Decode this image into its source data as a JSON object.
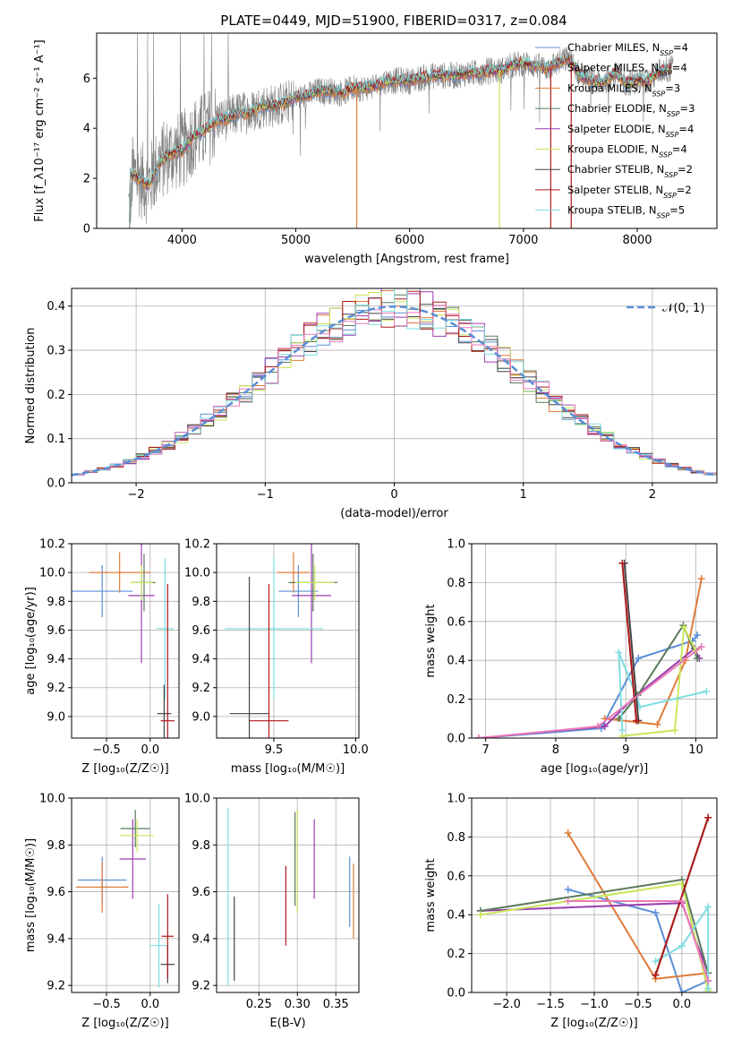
{
  "figure_title": "PLATE=0449, MJD=51900, FIBERID=0317, z=0.084",
  "colors": {
    "chabrier_miles": "#5b8ed8",
    "salpeter_miles": "#e07b39",
    "kroupa_miles": "#e07b39",
    "chabrier_elodie": "#5a7a5a",
    "salpeter_elodie": "#9b3db0",
    "kroupa_elodie": "#c8e65a",
    "chabrier_stelib": "#444444",
    "salpeter_stelib": "#b01818",
    "kroupa_stelib": "#7ddde0",
    "pink": "#e87ab8",
    "spectrum_data": "#808080",
    "normal_curve": "#5b8ed8",
    "grid": "#b0b0b0"
  },
  "chart_data": [
    {
      "id": "spectrum",
      "type": "line",
      "xlabel": "wavelength [Angstrom, rest frame]",
      "ylabel": "Flux [f_λ10⁻¹⁷ erg cm⁻² s⁻¹ A⁻¹]",
      "xlim": [
        3250,
        8700
      ],
      "ylim": [
        0,
        7.8
      ],
      "xticks": [
        4000,
        5000,
        6000,
        7000,
        8000
      ],
      "yticks": [
        0,
        2,
        4,
        6
      ],
      "legend_position": "right",
      "legend": [
        {
          "label": "Chabrier MILES, N_SSP=4",
          "color": "#5b8ed8"
        },
        {
          "label": "Salpeter MILES, N_SSP=4",
          "color": "#e07b39"
        },
        {
          "label": "Kroupa MILES, N_SSP=3",
          "color": "#e07b39"
        },
        {
          "label": "Chabrier ELODIE, N_SSP=3",
          "color": "#5a7a5a"
        },
        {
          "label": "Salpeter ELODIE, N_SSP=4",
          "color": "#9b3db0"
        },
        {
          "label": "Kroupa ELODIE, N_SSP=4",
          "color": "#c8e65a"
        },
        {
          "label": "Chabrier STELIB, N_SSP=2",
          "color": "#444444"
        },
        {
          "label": "Salpeter STELIB, N_SSP=2",
          "color": "#b01818"
        },
        {
          "label": "Kroupa STELIB, N_SSP=5",
          "color": "#7ddde0"
        }
      ],
      "model_x": [
        3530,
        3600,
        3700,
        3800,
        3900,
        4000,
        4100,
        4200,
        4300,
        4400,
        4500,
        4600,
        4700,
        4800,
        4900,
        5000,
        5100,
        5200,
        5300,
        5400,
        5500,
        5600,
        5700,
        5800,
        5900,
        6000,
        6100,
        6200,
        6300,
        6400,
        6500,
        6600,
        6700,
        6800,
        6900,
        7000,
        7100,
        7200,
        7300,
        7400,
        7500,
        7600,
        7700,
        7800,
        7900,
        8000,
        8100,
        8200,
        8300
      ],
      "model_y": [
        2.2,
        2.1,
        1.7,
        2.6,
        3.0,
        3.1,
        3.7,
        3.9,
        4.3,
        4.4,
        4.6,
        4.6,
        4.9,
        4.9,
        5.0,
        5.2,
        5.3,
        5.5,
        5.5,
        5.4,
        5.6,
        5.6,
        5.7,
        5.9,
        5.9,
        5.9,
        6.0,
        6.1,
        6.1,
        6.1,
        6.2,
        6.2,
        6.3,
        6.3,
        6.5,
        6.6,
        6.5,
        6.4,
        6.6,
        6.8,
        6.1,
        5.9,
        5.8,
        6.2,
        5.8,
        5.9,
        5.9,
        6.3,
        6.4
      ]
    },
    {
      "id": "residuals",
      "type": "area",
      "xlabel": "(data-model)/error",
      "ylabel": "Normed distribution",
      "xlim": [
        -2.5,
        2.5
      ],
      "ylim": [
        0,
        0.44
      ],
      "xticks": [
        -2,
        -1,
        0,
        1,
        2
      ],
      "yticks": [
        0.0,
        0.1,
        0.2,
        0.3,
        0.4
      ],
      "legend": [
        {
          "label": "𝒩(0, 1)",
          "color": "#5b8ed8"
        }
      ],
      "legend_position": "top-right",
      "bin_width": 0.1
    },
    {
      "id": "age_vs_Z",
      "type": "scatter",
      "xlabel": "Z [log₁₀(Z/Z☉)]",
      "ylabel": "age  [log₁₀(age/yr)]",
      "xlim": [
        -0.9,
        0.33
      ],
      "ylim": [
        8.85,
        10.2
      ],
      "xticks": [
        -0.5,
        0.0
      ],
      "yticks": [
        9.0,
        9.2,
        9.4,
        9.6,
        9.8,
        10.0,
        10.2
      ],
      "points": [
        {
          "x": -0.55,
          "y": 9.87,
          "xerr": 0.35,
          "yerr": 0.18,
          "color": "#5b8ed8"
        },
        {
          "x": -0.35,
          "y": 10.0,
          "xerr": 0.35,
          "yerr": 0.14,
          "color": "#e07b39"
        },
        {
          "x": -0.1,
          "y": 9.84,
          "xerr": 0.15,
          "yerr": 0.47,
          "color": "#9b3db0"
        },
        {
          "x": -0.07,
          "y": 9.93,
          "xerr": 0.13,
          "yerr": 0.2,
          "color": "#5a7a5a"
        },
        {
          "x": -0.1,
          "y": 9.93,
          "xerr": 0.13,
          "yerr": 0.12,
          "color": "#c8e65a"
        },
        {
          "x": 0.17,
          "y": 9.61,
          "xerr": 0.1,
          "yerr": 0.49,
          "color": "#7ddde0"
        },
        {
          "x": 0.16,
          "y": 9.02,
          "xerr": 0.08,
          "yerr": 0.2,
          "color": "#444444"
        },
        {
          "x": 0.2,
          "y": 8.97,
          "xerr": 0.08,
          "yerr": 0.95,
          "color": "#b01818"
        }
      ]
    },
    {
      "id": "age_vs_mass",
      "type": "scatter",
      "xlabel": "mass [log₁₀(M/M☉)]",
      "ylabel": "",
      "xlim": [
        9.15,
        10.02
      ],
      "ylim": [
        8.85,
        10.2
      ],
      "xticks": [
        9.5,
        10.0
      ],
      "yticks": [
        9.0,
        9.2,
        9.4,
        9.6,
        9.8,
        10.0,
        10.2
      ],
      "points": [
        {
          "x": 9.65,
          "y": 9.87,
          "xerr": 0.12,
          "yerr": 0.18,
          "color": "#5b8ed8"
        },
        {
          "x": 9.62,
          "y": 10.0,
          "xerr": 0.1,
          "yerr": 0.14,
          "color": "#e07b39"
        },
        {
          "x": 9.73,
          "y": 9.84,
          "xerr": 0.12,
          "yerr": 0.47,
          "color": "#9b3db0"
        },
        {
          "x": 9.74,
          "y": 9.93,
          "xerr": 0.15,
          "yerr": 0.2,
          "color": "#5a7a5a"
        },
        {
          "x": 9.75,
          "y": 9.93,
          "xerr": 0.12,
          "yerr": 0.12,
          "color": "#c8e65a"
        },
        {
          "x": 9.5,
          "y": 9.61,
          "xerr": 0.3,
          "yerr": 0.49,
          "color": "#7ddde0"
        },
        {
          "x": 9.35,
          "y": 9.02,
          "xerr": 0.12,
          "yerr": 0.95,
          "color": "#444444"
        },
        {
          "x": 9.47,
          "y": 8.97,
          "xerr": 0.12,
          "yerr": 0.95,
          "color": "#b01818"
        }
      ]
    },
    {
      "id": "massweight_vs_age",
      "type": "line",
      "xlabel": "age  [log₁₀(age/yr)]",
      "ylabel": "mass weight",
      "xlim": [
        6.8,
        10.3
      ],
      "ylim": [
        0,
        1.0
      ],
      "xticks": [
        7,
        8,
        9,
        10
      ],
      "yticks": [
        0.0,
        0.2,
        0.4,
        0.6,
        0.8,
        1.0
      ],
      "series": [
        {
          "color": "#5b8ed8",
          "x": [
            6.9,
            8.65,
            9.18,
            9.95,
            10.02
          ],
          "y": [
            0.0,
            0.05,
            0.41,
            0.5,
            0.53
          ]
        },
        {
          "color": "#e07b39",
          "x": [
            8.7,
            9.45,
            9.85,
            10.08
          ],
          "y": [
            0.1,
            0.07,
            0.4,
            0.82
          ]
        },
        {
          "color": "#9b3db0",
          "x": [
            6.9,
            8.7,
            9.15,
            9.98,
            10.05
          ],
          "y": [
            0.0,
            0.06,
            0.22,
            0.46,
            0.41
          ]
        },
        {
          "color": "#5a7a5a",
          "x": [
            8.9,
            9.17,
            9.82,
            10.02
          ],
          "y": [
            0.1,
            0.22,
            0.58,
            0.41
          ]
        },
        {
          "color": "#c8e65a",
          "x": [
            8.95,
            9.7,
            9.83,
            10.0
          ],
          "y": [
            0.01,
            0.04,
            0.57,
            0.45
          ]
        },
        {
          "color": "#7ddde0",
          "x": [
            8.95,
            8.9,
            9.15,
            9.2,
            10.15
          ],
          "y": [
            0.04,
            0.44,
            0.22,
            0.16,
            0.24
          ]
        },
        {
          "color": "#444444",
          "x": [
            8.98,
            9.18
          ],
          "y": [
            0.9,
            0.09
          ]
        },
        {
          "color": "#b01818",
          "x": [
            8.95,
            9.15
          ],
          "y": [
            0.9,
            0.09
          ]
        },
        {
          "color": "#e87ab8",
          "x": [
            6.9,
            8.6,
            10.08
          ],
          "y": [
            0.0,
            0.06,
            0.47
          ]
        }
      ]
    },
    {
      "id": "mass_vs_Z",
      "type": "scatter",
      "xlabel": "Z [log₁₀(Z/Z☉)]",
      "ylabel": "mass [log₁₀(M/M☉)]",
      "xlim": [
        -0.9,
        0.33
      ],
      "ylim": [
        9.17,
        10.0
      ],
      "xticks": [
        -0.5,
        0.0
      ],
      "yticks": [
        9.2,
        9.4,
        9.6,
        9.8,
        10.0
      ],
      "points": [
        {
          "x": -0.55,
          "y": 9.65,
          "xerr": 0.28,
          "yerr": 0.1,
          "color": "#5b8ed8"
        },
        {
          "x": -0.55,
          "y": 9.62,
          "xerr": 0.3,
          "yerr": 0.11,
          "color": "#e07b39"
        },
        {
          "x": -0.2,
          "y": 9.74,
          "xerr": 0.15,
          "yerr": 0.17,
          "color": "#9b3db0"
        },
        {
          "x": -0.17,
          "y": 9.87,
          "xerr": 0.17,
          "yerr": 0.08,
          "color": "#5a7a5a"
        },
        {
          "x": -0.15,
          "y": 9.84,
          "xerr": 0.19,
          "yerr": 0.07,
          "color": "#c8e65a"
        },
        {
          "x": 0.1,
          "y": 9.37,
          "xerr": 0.1,
          "yerr": 0.18,
          "color": "#7ddde0"
        },
        {
          "x": 0.2,
          "y": 9.29,
          "xerr": 0.08,
          "yerr": 0.08,
          "color": "#444444"
        },
        {
          "x": 0.2,
          "y": 9.41,
          "xerr": 0.07,
          "yerr": 0.18,
          "color": "#b01818"
        }
      ]
    },
    {
      "id": "mass_vs_ebv",
      "type": "scatter",
      "xlabel": "E(B-V)",
      "ylabel": "",
      "xlim": [
        0.195,
        0.38
      ],
      "ylim": [
        9.17,
        10.0
      ],
      "xticks": [
        0.25,
        0.3,
        0.35
      ],
      "yticks": [
        9.2,
        9.4,
        9.6,
        9.8,
        10.0
      ],
      "points": [
        {
          "x": 0.21,
          "y": 9.58,
          "yerr": 0.38,
          "color": "#7ddde0"
        },
        {
          "x": 0.218,
          "y": 9.4,
          "yerr": 0.18,
          "color": "#444444"
        },
        {
          "x": 0.285,
          "y": 9.54,
          "yerr": 0.17,
          "color": "#b01818"
        },
        {
          "x": 0.297,
          "y": 9.74,
          "yerr": 0.2,
          "color": "#5a7a5a"
        },
        {
          "x": 0.3,
          "y": 9.73,
          "yerr": 0.22,
          "color": "#c8e65a"
        },
        {
          "x": 0.322,
          "y": 9.74,
          "yerr": 0.17,
          "color": "#9b3db0"
        },
        {
          "x": 0.368,
          "y": 9.6,
          "yerr": 0.15,
          "color": "#5b8ed8"
        },
        {
          "x": 0.373,
          "y": 9.56,
          "yerr": 0.16,
          "color": "#e07b39"
        }
      ]
    },
    {
      "id": "massweight_vs_Z",
      "type": "line",
      "xlabel": "Z [log₁₀(Z/Z☉)]",
      "ylabel": "mass weight",
      "xlim": [
        -2.4,
        0.4
      ],
      "ylim": [
        0,
        1.0
      ],
      "xticks": [
        -2.0,
        -1.5,
        -1.0,
        -0.5,
        0.0
      ],
      "yticks": [
        0.0,
        0.2,
        0.4,
        0.6,
        0.8,
        1.0
      ],
      "series": [
        {
          "color": "#5b8ed8",
          "x": [
            -1.3,
            -0.3,
            0.0,
            0.3
          ],
          "y": [
            0.53,
            0.41,
            0.0,
            0.06
          ]
        },
        {
          "color": "#e07b39",
          "x": [
            -1.3,
            -0.3,
            0.3,
            0.3
          ],
          "y": [
            0.82,
            0.07,
            0.1,
            0.1
          ]
        },
        {
          "color": "#9b3db0",
          "x": [
            -2.3,
            0.0,
            0.3
          ],
          "y": [
            0.42,
            0.46,
            0.1
          ]
        },
        {
          "color": "#5a7a5a",
          "x": [
            -2.3,
            0.0,
            0.3
          ],
          "y": [
            0.42,
            0.58,
            0.1
          ]
        },
        {
          "color": "#c8e65a",
          "x": [
            -2.3,
            0.0,
            0.3
          ],
          "y": [
            0.4,
            0.56,
            0.01
          ]
        },
        {
          "color": "#7ddde0",
          "x": [
            -0.3,
            0.0,
            0.3,
            0.3
          ],
          "y": [
            0.16,
            0.24,
            0.44,
            0.02
          ]
        },
        {
          "color": "#444444",
          "x": [
            -0.3,
            0.3
          ],
          "y": [
            0.09,
            0.9
          ]
        },
        {
          "color": "#b01818",
          "x": [
            -0.3,
            0.3
          ],
          "y": [
            0.09,
            0.9
          ]
        },
        {
          "color": "#e87ab8",
          "x": [
            -1.3,
            0.0,
            0.3
          ],
          "y": [
            0.47,
            0.47,
            0.06
          ]
        }
      ]
    }
  ]
}
